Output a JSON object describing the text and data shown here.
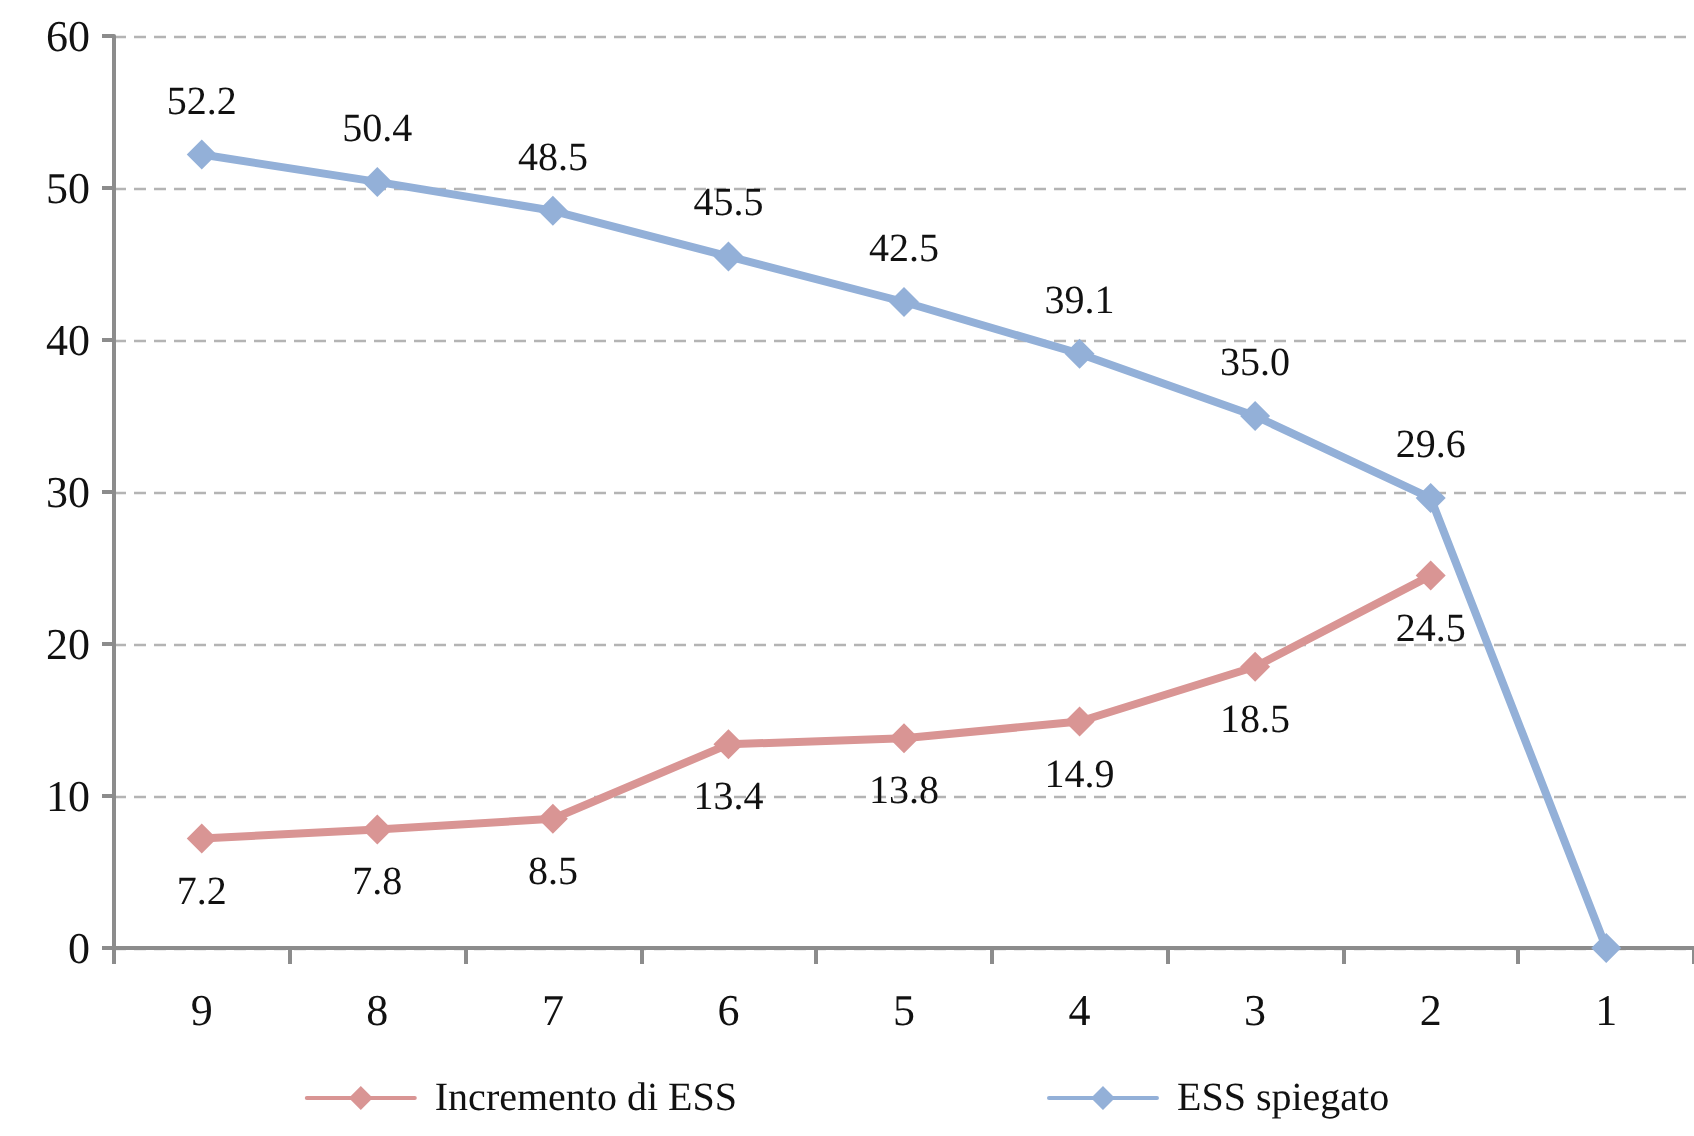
{
  "chart_data": {
    "type": "line",
    "categories": [
      "9",
      "8",
      "7",
      "6",
      "5",
      "4",
      "3",
      "2",
      "1"
    ],
    "series": [
      {
        "name": "Incremento di ESS",
        "color": "#d99594",
        "values": [
          7.2,
          7.8,
          8.5,
          13.4,
          13.8,
          14.9,
          18.5,
          24.5,
          null
        ],
        "value_labels": [
          "7.2",
          "7.8",
          "8.5",
          "13.4",
          "13.8",
          "14.9",
          "18.5",
          "24.5",
          null
        ]
      },
      {
        "name": "ESS spiegato",
        "color": "#93b0d8",
        "values": [
          52.2,
          50.4,
          48.5,
          45.5,
          42.5,
          39.1,
          35.0,
          29.6,
          0
        ],
        "value_labels": [
          "52.2",
          "50.4",
          "48.5",
          "45.5",
          "42.5",
          "39.1",
          "35.0",
          "29.6",
          null
        ]
      }
    ],
    "ylim": [
      0,
      60
    ],
    "yticks": [
      0,
      10,
      20,
      30,
      40,
      50,
      60
    ],
    "grid": "y",
    "legend": "bottom",
    "marker": "diamond",
    "line_style": "solid"
  }
}
